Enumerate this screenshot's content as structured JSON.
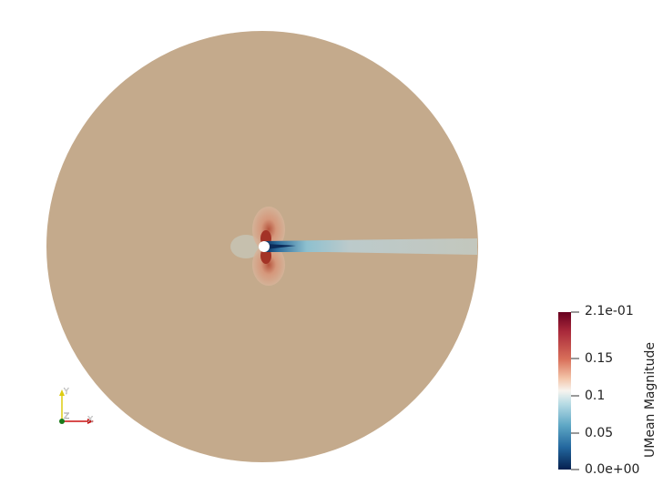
{
  "colorbar": {
    "title": "UMean Magnitude",
    "labels": [
      "2.1e-01",
      "0.15",
      "0.1",
      "0.05",
      "0.0e+00"
    ]
  },
  "axes": {
    "x_label": "X",
    "y_label": "Y",
    "z_label": "Z"
  },
  "colors": {
    "domain_fill": "#c4aa8c",
    "wake": "#c2c7bd",
    "cylinder": "#ffffff",
    "x_axis": "#cc1111",
    "y_axis": "#ddcc11",
    "z_axis": "#1a7a1a"
  }
}
